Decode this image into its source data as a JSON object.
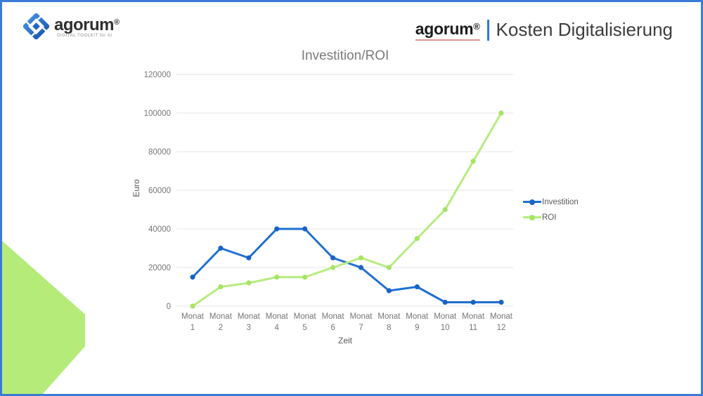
{
  "slide": {
    "border_color": "#3a7bd6",
    "decoration_color": "#b5ec79"
  },
  "logo": {
    "brand": "agorum",
    "reg": "®",
    "tagline": "DIGITAL TOOLKIT for AI"
  },
  "header": {
    "brand": "agorum",
    "reg": "®",
    "title": "Kosten Digitalisierung",
    "separator_color": "#2e7cd6"
  },
  "chart_data": {
    "type": "line",
    "title": "Investition/ROI",
    "xlabel": "Zeit",
    "ylabel": "Euro",
    "categories": [
      "Monat 1",
      "Monat 2",
      "Monat 3",
      "Monat 4",
      "Monat 5",
      "Monat 6",
      "Monat 7",
      "Monat 8",
      "Monat 9",
      "Monat 10",
      "Monat 11",
      "Monat 12"
    ],
    "yticks": [
      0,
      20000,
      40000,
      60000,
      80000,
      100000,
      120000
    ],
    "ylim": [
      0,
      120000
    ],
    "grid": "horizontal",
    "gridline_color": "#e4e4e4",
    "legend_position": "right",
    "series": [
      {
        "name": "Investition",
        "color": "#1e6fd2",
        "marker_color": "#1a63c4",
        "values": [
          15000,
          30000,
          25000,
          40000,
          40000,
          25000,
          20000,
          8000,
          10000,
          2000,
          2000,
          2000
        ]
      },
      {
        "name": "ROI",
        "color": "#b6ec7e",
        "marker_color": "#a6e464",
        "values": [
          0,
          10000,
          12000,
          15000,
          15000,
          20000,
          25000,
          20000,
          35000,
          50000,
          75000,
          100000
        ]
      }
    ]
  }
}
